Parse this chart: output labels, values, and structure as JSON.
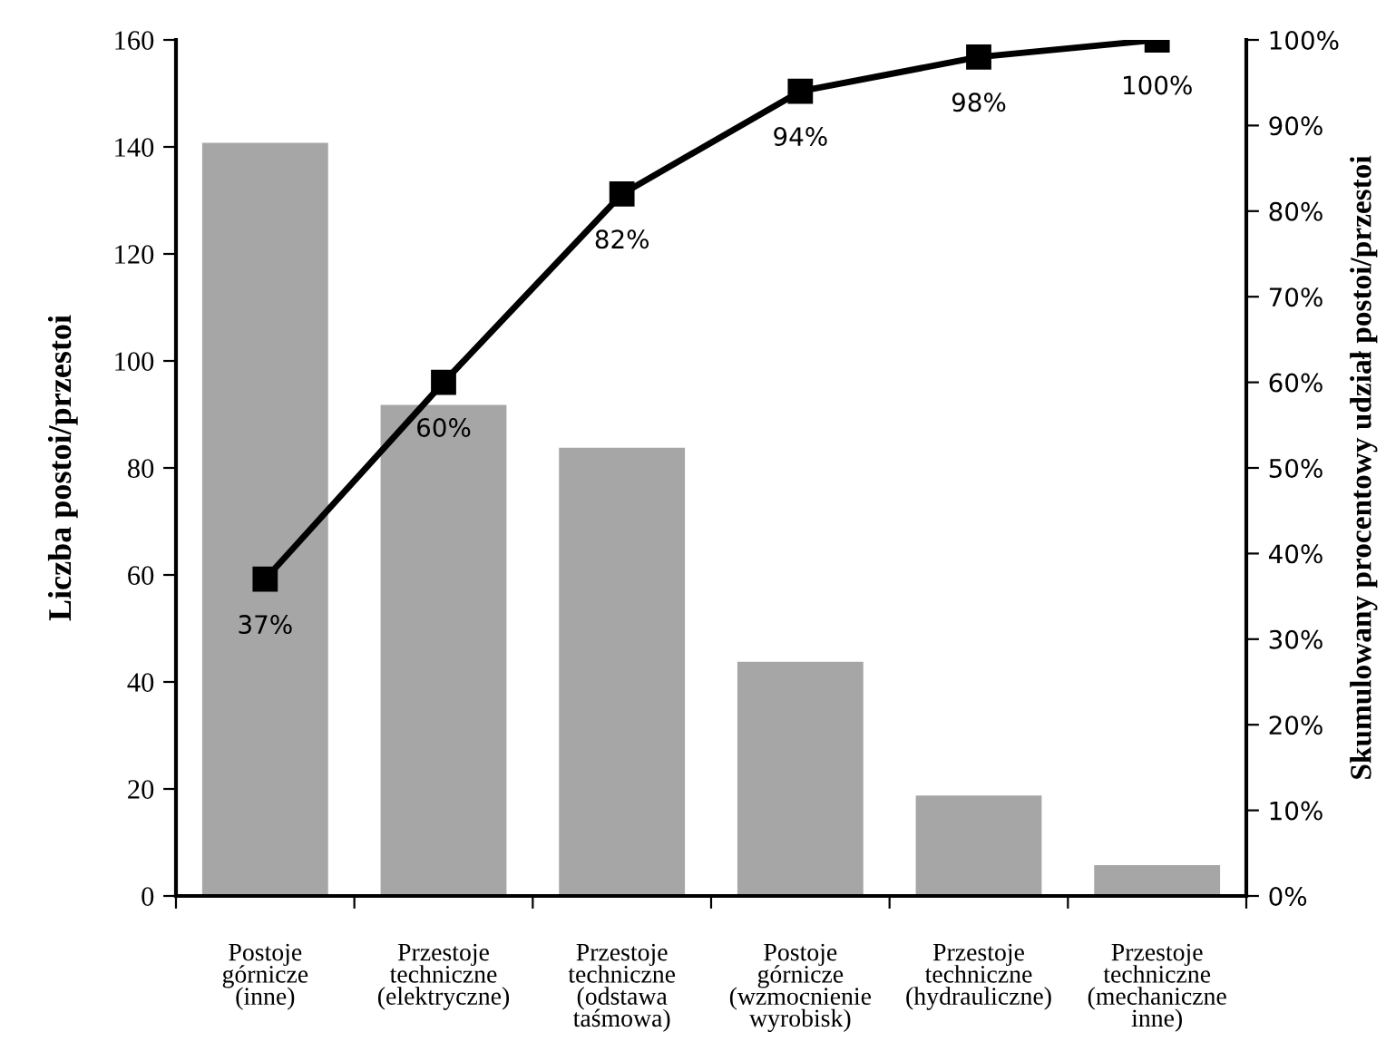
{
  "chart_data": {
    "type": "bar",
    "categories": [
      "Postoje\ngórnicze\n(inne)",
      "Przestoje\ntechniczne\n(elektryczne)",
      "Przestoje\ntechniczne\n(odstawa\ntaśmowa)",
      "Postoje\ngórnicze\n(wzmocnienie\nwyrobisk)",
      "Przestoje\ntechniczne\n(hydrauliczne)",
      "Przestoje\ntechniczne\n(mechaniczne\ninne)"
    ],
    "ylabel": "Liczba postoi/przestoi",
    "y2label": "Skumulowany procentowy udział postoi/przestoi",
    "ylim": [
      0,
      160
    ],
    "yticks": [
      0,
      20,
      40,
      60,
      80,
      100,
      120,
      140,
      160
    ],
    "y2lim": [
      0,
      100
    ],
    "y2ticks": [
      {
        "value": 0,
        "label": "0%"
      },
      {
        "value": 10,
        "label": "10%"
      },
      {
        "value": 20,
        "label": "20%"
      },
      {
        "value": 30,
        "label": "30%"
      },
      {
        "value": 40,
        "label": "40%"
      },
      {
        "value": 50,
        "label": "50%"
      },
      {
        "value": 60,
        "label": "60%"
      },
      {
        "value": 70,
        "label": "70%"
      },
      {
        "value": 80,
        "label": "80%"
      },
      {
        "value": 90,
        "label": "90%"
      },
      {
        "value": 100,
        "label": "100%"
      }
    ],
    "series": [
      {
        "color": "#a6a6a6",
        "values": [
          141,
          92,
          84,
          44,
          19,
          6
        ]
      },
      {
        "type": "line",
        "axis": "y2",
        "color": "#000000",
        "marker": "square",
        "values": [
          37,
          60,
          82,
          94,
          98,
          100
        ],
        "value_labels": [
          "37%",
          "60%",
          "82%",
          "94%",
          "98%",
          "100%"
        ]
      }
    ],
    "grid": false,
    "legend": false
  }
}
